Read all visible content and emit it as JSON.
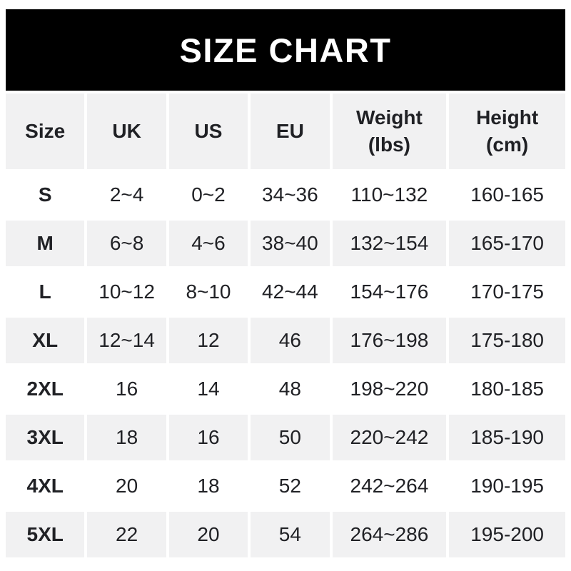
{
  "banner": {
    "title": "SIZE CHART",
    "bg_color": "#000000",
    "text_color": "#ffffff"
  },
  "colors": {
    "shaded_row_bg": "#f1f1f2",
    "table_text": "#202125",
    "page_bg": "#ffffff"
  },
  "table": {
    "headers": [
      {
        "line1": "Size",
        "line2": ""
      },
      {
        "line1": "UK",
        "line2": ""
      },
      {
        "line1": "US",
        "line2": ""
      },
      {
        "line1": "EU",
        "line2": ""
      },
      {
        "line1": "Weight",
        "line2": "(lbs)"
      },
      {
        "line1": "Height",
        "line2": "(cm)"
      }
    ]
  },
  "chart_data": {
    "type": "table",
    "title": "SIZE CHART",
    "columns": [
      "Size",
      "UK",
      "US",
      "EU",
      "Weight (lbs)",
      "Height (cm)"
    ],
    "rows": [
      [
        "S",
        "2~4",
        "0~2",
        "34~36",
        "110~132",
        "160-165"
      ],
      [
        "M",
        "6~8",
        "4~6",
        "38~40",
        "132~154",
        "165-170"
      ],
      [
        "L",
        "10~12",
        "8~10",
        "42~44",
        "154~176",
        "170-175"
      ],
      [
        "XL",
        "12~14",
        "12",
        "46",
        "176~198",
        "175-180"
      ],
      [
        "2XL",
        "16",
        "14",
        "48",
        "198~220",
        "180-185"
      ],
      [
        "3XL",
        "18",
        "16",
        "50",
        "220~242",
        "185-190"
      ],
      [
        "4XL",
        "20",
        "18",
        "52",
        "242~264",
        "190-195"
      ],
      [
        "5XL",
        "22",
        "20",
        "54",
        "264~286",
        "195-200"
      ]
    ]
  }
}
